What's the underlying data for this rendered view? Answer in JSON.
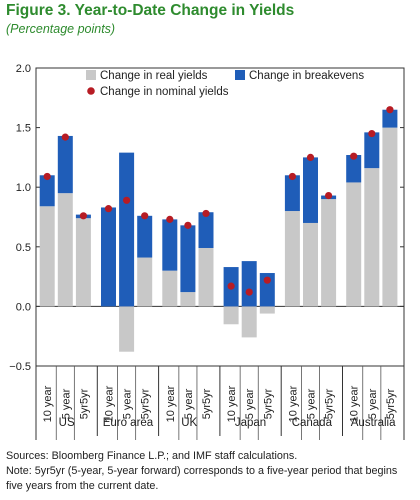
{
  "figure": {
    "title": "Figure 3. Year-to-Date Change in Yields",
    "subtitle": "(Percentage points)"
  },
  "notes": {
    "sources": "Sources: Bloomberg Finance L.P.; and IMF staff calculations.",
    "note_line1": "Note: 5yr5yr (5-year, 5-year forward) corresponds to a five-year period that begins",
    "note_line2": "five years from the current date."
  },
  "colors": {
    "real": "#c8c8c8",
    "breakevens": "#1f5db8",
    "nominal": "#b71c24",
    "title": "#2e8b2e"
  },
  "chart_data": {
    "type": "bar",
    "stacked": true,
    "ylim": [
      -0.5,
      2.0
    ],
    "yticks": [
      -0.5,
      0.0,
      0.5,
      1.0,
      1.5,
      2.0
    ],
    "ytick_labels": [
      "−0.5",
      "0.0",
      "0.5",
      "1.0",
      "1.5",
      "2.0"
    ],
    "legend": {
      "placement": "top",
      "entries": [
        "Change in real yields",
        "Change in breakevens",
        "Change in nominal yields"
      ]
    },
    "groups": [
      {
        "name": "US",
        "categories": [
          "10 year",
          "5 year",
          "5yr5yr"
        ]
      },
      {
        "name": "Euro area",
        "categories": [
          "10 year",
          "5 year",
          "5yr5yr"
        ]
      },
      {
        "name": "UK",
        "categories": [
          "10 year",
          "5 year",
          "5yr5yr"
        ]
      },
      {
        "name": "Japan",
        "categories": [
          "10 year",
          "5 year",
          "5yr5yr"
        ]
      },
      {
        "name": "Canada",
        "categories": [
          "10 year",
          "5 year",
          "5yr5yr"
        ]
      },
      {
        "name": "Australia",
        "categories": [
          "10 year",
          "5 year",
          "5yr5yr"
        ]
      }
    ],
    "series": [
      {
        "name": "Change in real yields",
        "kind": "bar",
        "values": [
          0.84,
          0.95,
          0.74,
          0.0,
          -0.38,
          0.41,
          0.3,
          0.12,
          0.49,
          -0.15,
          -0.26,
          -0.06,
          0.8,
          0.7,
          0.9,
          1.04,
          1.16,
          1.5
        ]
      },
      {
        "name": "Change in breakevens",
        "kind": "bar",
        "values": [
          0.26,
          0.48,
          0.03,
          0.83,
          1.29,
          0.35,
          0.43,
          0.56,
          0.3,
          0.33,
          0.38,
          0.28,
          0.3,
          0.55,
          0.03,
          0.23,
          0.3,
          0.15
        ]
      },
      {
        "name": "Change in nominal yields",
        "kind": "point",
        "values": [
          1.09,
          1.42,
          0.76,
          0.82,
          0.89,
          0.76,
          0.73,
          0.68,
          0.78,
          0.17,
          0.12,
          0.22,
          1.09,
          1.25,
          0.93,
          1.26,
          1.45,
          1.65
        ]
      }
    ]
  }
}
